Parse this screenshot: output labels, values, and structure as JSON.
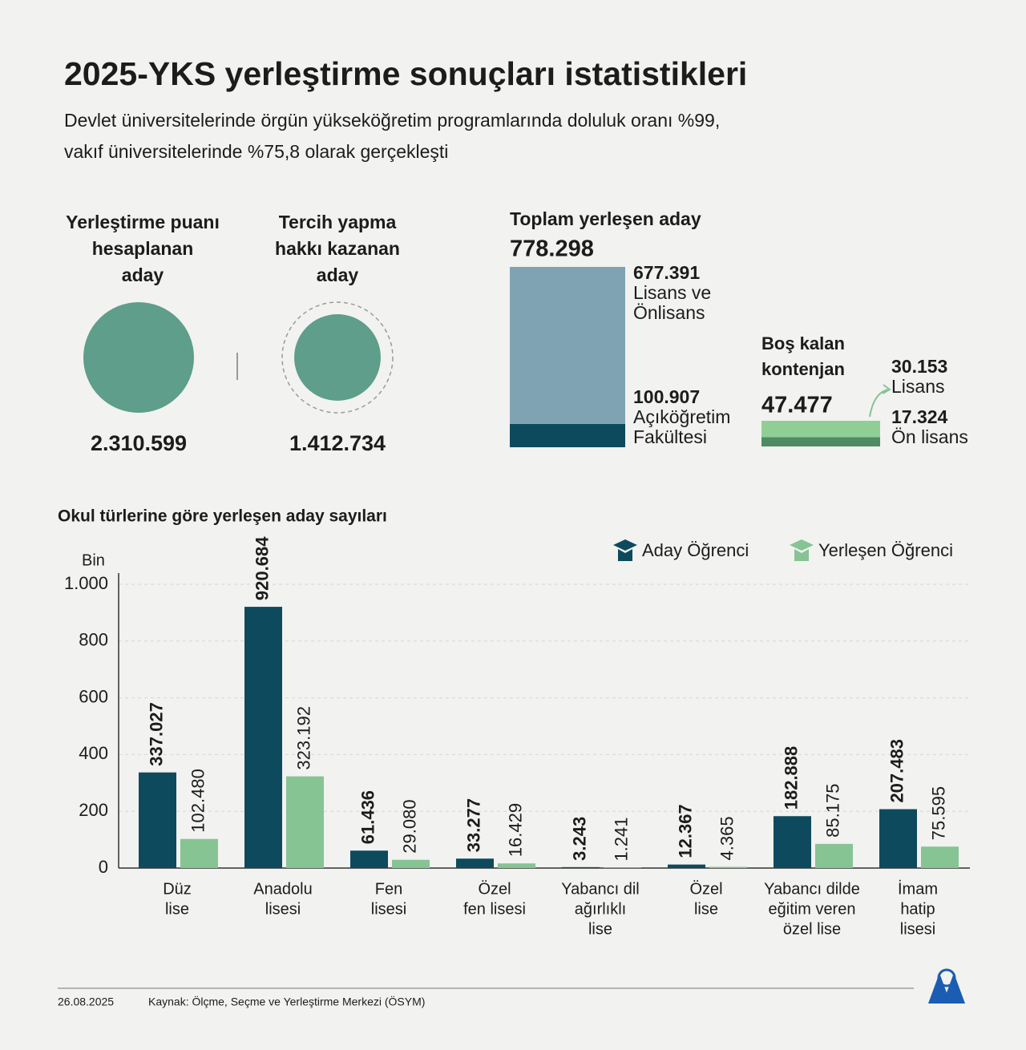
{
  "title": "2025-YKS yerleştirme sonuçları istatistikleri",
  "subtitle": [
    "Devlet üniversitelerinde örgün yükseköğretim programlarında doluluk oranı %99,",
    "vakıf üniversitelerinde %75,8 olarak gerçekleşti"
  ],
  "candidates": [
    {
      "label_lines": [
        "Yerleştirme puanı",
        "hesaplanan",
        "aday"
      ],
      "value": 2310599,
      "value_label": "2.310.599"
    },
    {
      "label_lines": [
        "Tercih yapma",
        "hakkı kazanan",
        "aday"
      ],
      "value": 1412734,
      "value_label": "1.412.734"
    }
  ],
  "placed": {
    "title": "Toplam yerleşen aday",
    "total": 778298,
    "total_label": "778.298",
    "segments": [
      {
        "value": 677391,
        "value_label": "677.391",
        "label_lines": [
          "Lisans ve",
          "Önlisans"
        ],
        "color": "#7fa3b2"
      },
      {
        "value": 100907,
        "value_label": "100.907",
        "label_lines": [
          "Açıköğretim",
          "Fakültesi"
        ],
        "color": "#0d4a5e"
      }
    ]
  },
  "empty": {
    "title_lines": [
      "Boş kalan",
      "kontenjan"
    ],
    "total": 47477,
    "total_label": "47.477",
    "segments": [
      {
        "value": 30153,
        "value_label": "30.153",
        "label_lines": [
          "Lisans"
        ],
        "color": "#8fcf95"
      },
      {
        "value": 17324,
        "value_label": "17.324",
        "label_lines": [
          "Ön lisans"
        ],
        "color": "#4f8c63"
      }
    ]
  },
  "chart_data": {
    "type": "bar",
    "title": "Okul türlerine göre yerleşen aday sayıları",
    "y_unit": "Bin",
    "categories": [
      [
        "Düz",
        "lise"
      ],
      [
        "Anadolu",
        "lisesi"
      ],
      [
        "Fen",
        "lisesi"
      ],
      [
        "Özel",
        "fen lisesi"
      ],
      [
        "Yabancı dil",
        "ağırlıklı",
        "lise"
      ],
      [
        "Özel",
        "lise"
      ],
      [
        "Yabancı dilde",
        "eğitim veren",
        "özel lise"
      ],
      [
        "İmam",
        "hatip",
        "lisesi"
      ]
    ],
    "series": [
      {
        "name": "Aday Öğrenci",
        "color": "#0d4a5e",
        "values": [
          337.027,
          920.684,
          61.436,
          33.277,
          3.243,
          12.367,
          182.888,
          207.483
        ],
        "value_labels": [
          "337.027",
          "920.684",
          "61.436",
          "33.277",
          "3.243",
          "12.367",
          "182.888",
          "207.483"
        ]
      },
      {
        "name": "Yerleşen Öğrenci",
        "color": "#86c494",
        "values": [
          102.48,
          323.192,
          29.08,
          16.429,
          1.241,
          4.365,
          85.175,
          75.595
        ],
        "value_labels": [
          "102.480",
          "323.192",
          "29.080",
          "16.429",
          "1.241",
          "4.365",
          "85.175",
          "75.595"
        ]
      }
    ],
    "ylim": [
      0,
      1000
    ],
    "yticks": [
      0,
      200,
      400,
      600,
      800,
      {
        "value": 1000,
        "label": "1.000"
      }
    ],
    "grid": true,
    "legend": "top-right"
  },
  "footer": {
    "date": "26.08.2025",
    "source": "Kaynak: Ölçme, Seçme ve Yerleştirme Merkezi (ÖSYM)"
  }
}
